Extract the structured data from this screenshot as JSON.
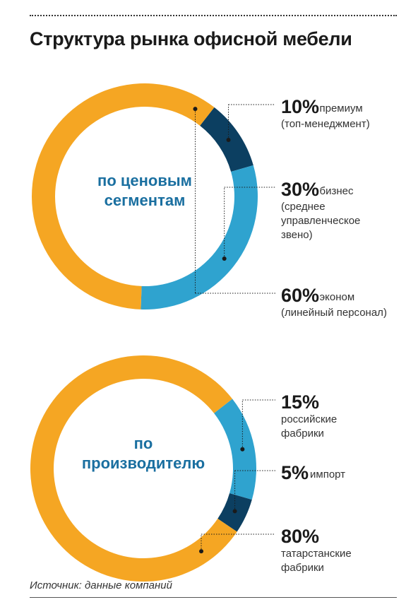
{
  "title": "Структура рынка офисной мебели",
  "source": "Источник: данные компаний",
  "colors": {
    "premium": "#0c3f61",
    "middle": "#2fa3cf",
    "economy": "#f5a623",
    "center_text": "#1a6fa0"
  },
  "chart_data": [
    {
      "type": "pie",
      "donut": true,
      "center_label": [
        "по ценовым",
        "сегментам"
      ],
      "unit": "%",
      "slices": [
        {
          "value": 10,
          "percent_label": "10%",
          "label": [
            "премиум",
            "(топ-менеджмент)"
          ],
          "color": "#0c3f61"
        },
        {
          "value": 30,
          "percent_label": "30%",
          "label": [
            "бизнес",
            "(среднее",
            "управленческое",
            "звено)"
          ],
          "color": "#2fa3cf"
        },
        {
          "value": 60,
          "percent_label": "60%",
          "label": [
            "эконом",
            "(линейный персонал)"
          ],
          "color": "#f5a623"
        }
      ]
    },
    {
      "type": "pie",
      "donut": true,
      "center_label": [
        "по",
        "производителю"
      ],
      "unit": "%",
      "slices": [
        {
          "value": 15,
          "percent_label": "15%",
          "label": [
            "российские",
            "фабрики"
          ],
          "color": "#2fa3cf"
        },
        {
          "value": 5,
          "percent_label": "5%",
          "label": [
            "импорт"
          ],
          "color": "#0c3f61"
        },
        {
          "value": 80,
          "percent_label": "80%",
          "label": [
            "татарстанские",
            "фабрики"
          ],
          "color": "#f5a623"
        }
      ]
    }
  ]
}
